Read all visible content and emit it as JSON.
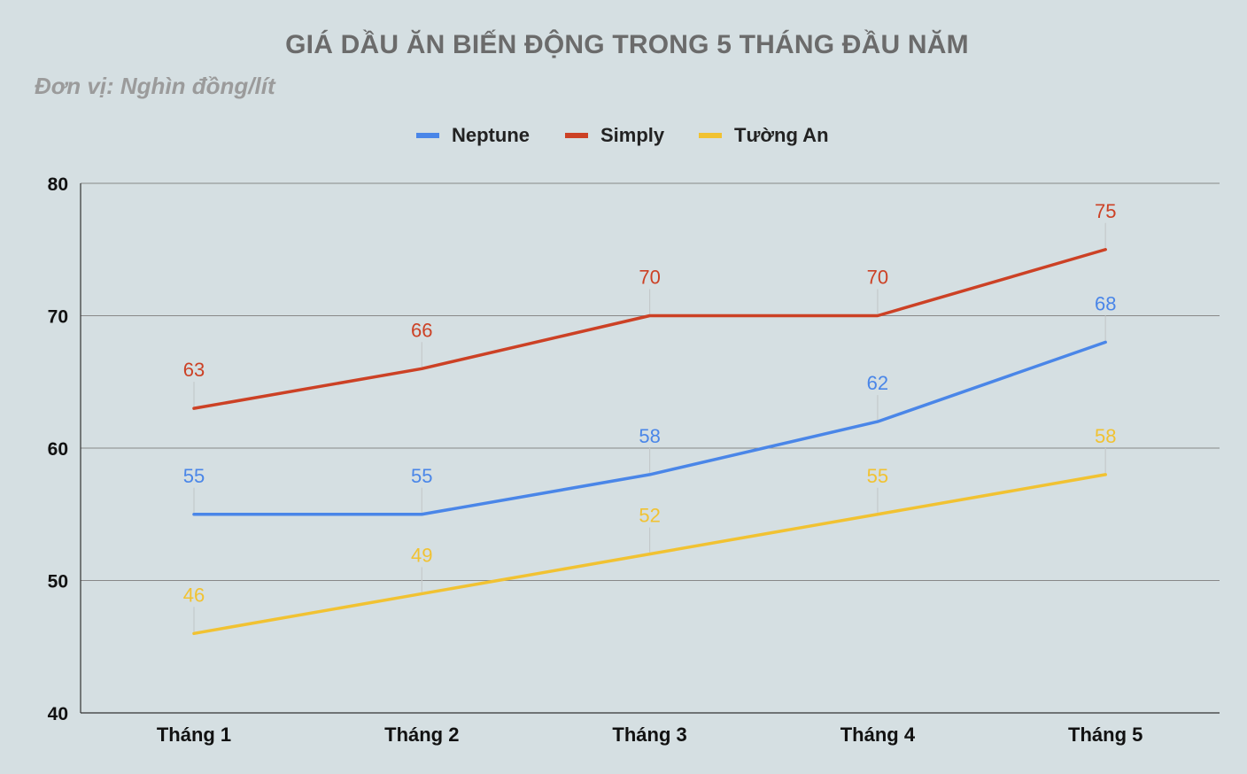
{
  "chart_data": {
    "type": "line",
    "title": "GIÁ DẦU ĂN BIẾN ĐỘNG TRONG 5 THÁNG ĐẦU NĂM",
    "subtitle": "Đơn vị: Nghìn đồng/lít",
    "categories": [
      "Tháng 1",
      "Tháng 2",
      "Tháng 3",
      "Tháng 4",
      "Tháng 5"
    ],
    "series": [
      {
        "name": "Neptune",
        "color": "#4a86e8",
        "values": [
          55,
          55,
          58,
          62,
          68
        ]
      },
      {
        "name": "Simply",
        "color": "#cc4125",
        "values": [
          63,
          66,
          70,
          70,
          75
        ]
      },
      {
        "name": "Tường An",
        "color": "#f1c232",
        "values": [
          46,
          49,
          52,
          55,
          58
        ]
      }
    ],
    "ylim": [
      40,
      80
    ],
    "yticks": [
      "40",
      "50",
      "60",
      "70",
      "80"
    ],
    "grid": true,
    "data_labels": true,
    "legend_position": "top"
  }
}
